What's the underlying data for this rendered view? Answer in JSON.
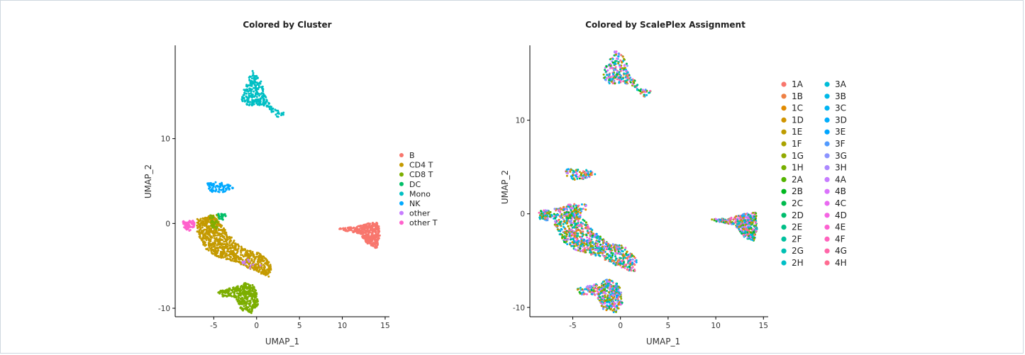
{
  "chart_data": [
    {
      "type": "scatter",
      "title": "Colored by Cluster",
      "xlabel": "UMAP_1",
      "ylabel": "UMAP_2",
      "xlim": [
        -9.5,
        15.5
      ],
      "ylim": [
        -11,
        21
      ],
      "xticks": [
        -5,
        0,
        5,
        10,
        15
      ],
      "yticks": [
        -10,
        0,
        10
      ],
      "grid": false,
      "legend_position": "right",
      "series": [
        {
          "name": "B",
          "color": "#F8766D"
        },
        {
          "name": "CD4 T",
          "color": "#C49A00"
        },
        {
          "name": "CD8 T",
          "color": "#7CAE00"
        },
        {
          "name": "DC",
          "color": "#00BE67"
        },
        {
          "name": "Mono",
          "color": "#00BFC4"
        },
        {
          "name": "NK",
          "color": "#00A9FF"
        },
        {
          "name": "other",
          "color": "#C77CFF"
        },
        {
          "name": "other T",
          "color": "#FF61CC"
        }
      ],
      "clusters": [
        {
          "series": "B",
          "shape": [
            [
              9.5,
              -0.6
            ],
            [
              11.5,
              -0.4
            ],
            [
              13,
              0
            ],
            [
              14.2,
              0.2
            ],
            [
              14.4,
              -1.5
            ],
            [
              14,
              -3
            ],
            [
              13,
              -2.5
            ],
            [
              12,
              -1.2
            ],
            [
              10,
              -0.8
            ]
          ],
          "n": 420
        },
        {
          "series": "CD4 T",
          "shape": [
            [
              -7,
              0.5
            ],
            [
              -5,
              1
            ],
            [
              -3.5,
              -1
            ],
            [
              -1.5,
              -3
            ],
            [
              0.5,
              -3.5
            ],
            [
              1.8,
              -5
            ],
            [
              1.5,
              -6.3
            ],
            [
              -0.5,
              -5.5
            ],
            [
              -2.5,
              -4.5
            ],
            [
              -4.5,
              -4
            ],
            [
              -6,
              -3
            ],
            [
              -7,
              -1
            ]
          ],
          "n": 850
        },
        {
          "series": "CD8 T",
          "shape": [
            [
              -4.6,
              -8
            ],
            [
              -2.5,
              -7.5
            ],
            [
              -1.5,
              -7
            ],
            [
              -0.5,
              -7.2
            ],
            [
              0,
              -8
            ],
            [
              0.2,
              -9.5
            ],
            [
              -0.5,
              -10.6
            ],
            [
              -1.8,
              -10.2
            ],
            [
              -2.5,
              -8.7
            ],
            [
              -4.2,
              -8.6
            ]
          ],
          "n": 380
        },
        {
          "series": "CD8 T",
          "shape": [
            [
              -5.5,
              1
            ],
            [
              -4.4,
              1.1
            ],
            [
              -4.6,
              -0.8
            ],
            [
              -5.3,
              -0.5
            ]
          ],
          "n": 30
        },
        {
          "series": "DC",
          "shape": [
            [
              -4.5,
              1.2
            ],
            [
              -3.6,
              1.1
            ],
            [
              -3.6,
              0.4
            ],
            [
              -4.4,
              0.5
            ]
          ],
          "n": 25
        },
        {
          "series": "Mono",
          "shape": [
            [
              -1.7,
              15.5
            ],
            [
              -0.5,
              18
            ],
            [
              0.5,
              17
            ],
            [
              1,
              15
            ],
            [
              2,
              13.5
            ],
            [
              3.5,
              13
            ],
            [
              2.5,
              12.5
            ],
            [
              1,
              13.8
            ],
            [
              0,
              14
            ],
            [
              -1,
              13.8
            ],
            [
              -1.8,
              14.5
            ]
          ],
          "n": 260
        },
        {
          "series": "NK",
          "shape": [
            [
              -5.8,
              4.8
            ],
            [
              -4.5,
              4.9
            ],
            [
              -3.2,
              4.6
            ],
            [
              -2.6,
              4.2
            ],
            [
              -3.8,
              3.7
            ],
            [
              -5,
              3.6
            ],
            [
              -5.6,
              4
            ]
          ],
          "n": 90
        },
        {
          "series": "other T",
          "shape": [
            [
              -8.6,
              0.3
            ],
            [
              -7.5,
              0.5
            ],
            [
              -7.1,
              -0.2
            ],
            [
              -7.8,
              -0.9
            ],
            [
              -8.5,
              -0.6
            ]
          ],
          "n": 70
        },
        {
          "series": "other",
          "shape": [
            [
              -2,
              -4.5
            ],
            [
              -1,
              -4
            ],
            [
              0.5,
              -5
            ],
            [
              -0.5,
              -5.6
            ]
          ],
          "n": 12
        }
      ]
    },
    {
      "type": "scatter",
      "title": "Colored by ScalePlex Assignment",
      "xlabel": "UMAP_1",
      "ylabel": "UMAP_2",
      "xlim": [
        -9.5,
        15.5
      ],
      "ylim": [
        -11,
        18
      ],
      "xticks": [
        -5,
        0,
        5,
        10,
        15
      ],
      "yticks": [
        -10,
        0,
        10
      ],
      "grid": false,
      "legend_position": "right",
      "series": [
        {
          "name": "1A",
          "color": "#F8766D"
        },
        {
          "name": "1B",
          "color": "#EE8044"
        },
        {
          "name": "1C",
          "color": "#E18A00"
        },
        {
          "name": "1D",
          "color": "#D09400"
        },
        {
          "name": "1E",
          "color": "#BE9C00"
        },
        {
          "name": "1F",
          "color": "#AAA300"
        },
        {
          "name": "1G",
          "color": "#92AA00"
        },
        {
          "name": "1H",
          "color": "#77AF00"
        },
        {
          "name": "2A",
          "color": "#53B400"
        },
        {
          "name": "2B",
          "color": "#00B81F"
        },
        {
          "name": "2C",
          "color": "#00BB4E"
        },
        {
          "name": "2D",
          "color": "#00BD6D"
        },
        {
          "name": "2E",
          "color": "#00BF87"
        },
        {
          "name": "2F",
          "color": "#00C09E"
        },
        {
          "name": "2G",
          "color": "#00C0B3"
        },
        {
          "name": "2H",
          "color": "#00BFC7"
        },
        {
          "name": "3A",
          "color": "#00BDD8"
        },
        {
          "name": "3B",
          "color": "#00B9E7"
        },
        {
          "name": "3C",
          "color": "#00B4F3"
        },
        {
          "name": "3D",
          "color": "#00ADFC"
        },
        {
          "name": "3E",
          "color": "#00A5FF"
        },
        {
          "name": "3F",
          "color": "#529BFF"
        },
        {
          "name": "3G",
          "color": "#8B93FF"
        },
        {
          "name": "3H",
          "color": "#AC88FF"
        },
        {
          "name": "4A",
          "color": "#C77CFF"
        },
        {
          "name": "4B",
          "color": "#DA72FB"
        },
        {
          "name": "4C",
          "color": "#E96AF1"
        },
        {
          "name": "4D",
          "color": "#F564E3"
        },
        {
          "name": "4E",
          "color": "#FD61D1"
        },
        {
          "name": "4F",
          "color": "#FF62BC"
        },
        {
          "name": "4G",
          "color": "#FF66A8"
        },
        {
          "name": "4H",
          "color": "#FF6C91"
        }
      ],
      "clusters": [
        {
          "shape": [
            [
              9.5,
              -0.6
            ],
            [
              11.5,
              -0.4
            ],
            [
              13,
              0
            ],
            [
              14.2,
              0.2
            ],
            [
              14.4,
              -1.5
            ],
            [
              14,
              -3
            ],
            [
              13,
              -2.5
            ],
            [
              12,
              -1.2
            ],
            [
              10,
              -0.8
            ]
          ],
          "n": 420
        },
        {
          "shape": [
            [
              -7,
              0.5
            ],
            [
              -5,
              1
            ],
            [
              -3.5,
              -1
            ],
            [
              -1.5,
              -3
            ],
            [
              0.5,
              -3.5
            ],
            [
              1.8,
              -5
            ],
            [
              1.5,
              -6.3
            ],
            [
              -0.5,
              -5.5
            ],
            [
              -2.5,
              -4.5
            ],
            [
              -4.5,
              -4
            ],
            [
              -6,
              -3
            ],
            [
              -7,
              -1
            ]
          ],
          "n": 850
        },
        {
          "shape": [
            [
              -4.6,
              -8
            ],
            [
              -2.5,
              -7.5
            ],
            [
              -1.5,
              -7
            ],
            [
              -0.5,
              -7.2
            ],
            [
              0,
              -8
            ],
            [
              0.2,
              -9.5
            ],
            [
              -0.5,
              -10.6
            ],
            [
              -1.8,
              -10.2
            ],
            [
              -2.5,
              -8.7
            ],
            [
              -4.2,
              -8.6
            ]
          ],
          "n": 380
        },
        {
          "shape": [
            [
              -5.5,
              1
            ],
            [
              -3.6,
              1.1
            ],
            [
              -3.6,
              0.4
            ],
            [
              -5.3,
              -0.5
            ]
          ],
          "n": 55
        },
        {
          "shape": [
            [
              -1.7,
              15.5
            ],
            [
              -0.5,
              17.5
            ],
            [
              0.5,
              16.8
            ],
            [
              1,
              15
            ],
            [
              2,
              13.5
            ],
            [
              3.5,
              13
            ],
            [
              2.5,
              12.5
            ],
            [
              1,
              13.8
            ],
            [
              0,
              14
            ],
            [
              -1,
              13.8
            ],
            [
              -1.8,
              14.5
            ]
          ],
          "n": 260
        },
        {
          "shape": [
            [
              -5.8,
              4.8
            ],
            [
              -4.5,
              4.9
            ],
            [
              -3.2,
              4.6
            ],
            [
              -2.6,
              4.2
            ],
            [
              -3.8,
              3.7
            ],
            [
              -5,
              3.6
            ],
            [
              -5.6,
              4
            ]
          ],
          "n": 90
        },
        {
          "shape": [
            [
              -8.6,
              0.3
            ],
            [
              -7.5,
              0.5
            ],
            [
              -7.1,
              -0.2
            ],
            [
              -7.8,
              -0.9
            ],
            [
              -8.5,
              -0.6
            ]
          ],
          "n": 70
        }
      ]
    }
  ]
}
